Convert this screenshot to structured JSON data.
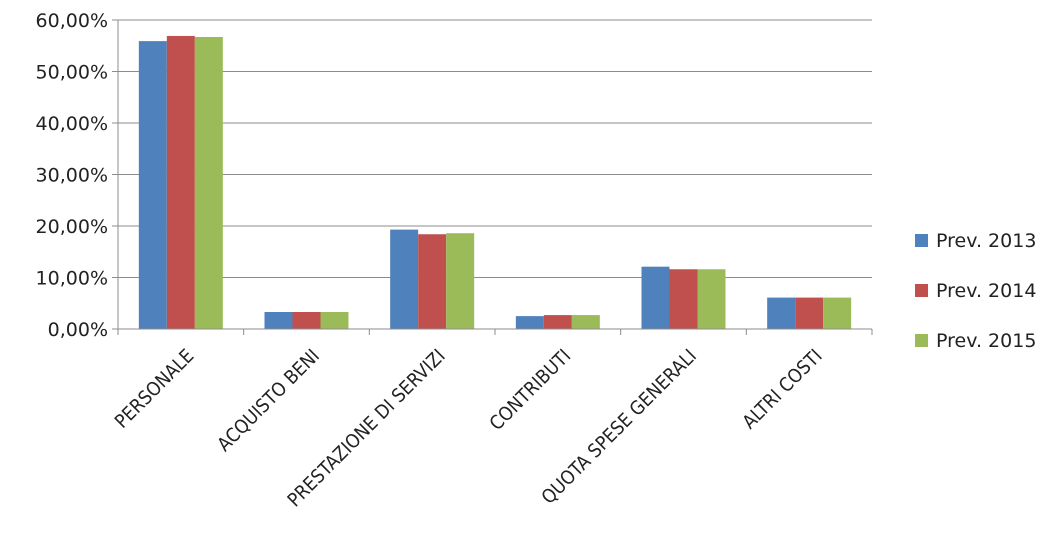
{
  "chart_data": {
    "type": "bar",
    "categories": [
      "PERSONALE",
      "ACQUISTO BENI",
      "PRESTAZIONE DI SERVIZI",
      "CONTRIBUTI",
      "QUOTA SPESE GENERALI",
      "ALTRI COSTI"
    ],
    "series": [
      {
        "name": "Prev. 2013",
        "color": "#4F81BD",
        "values": [
          55.9,
          3.3,
          19.3,
          2.5,
          12.1,
          6.1
        ]
      },
      {
        "name": "Prev. 2014",
        "color": "#C0504D",
        "values": [
          56.9,
          3.3,
          18.4,
          2.7,
          11.6,
          6.1
        ]
      },
      {
        "name": "Prev. 2015",
        "color": "#9BBB59",
        "values": [
          56.7,
          3.3,
          18.6,
          2.7,
          11.6,
          6.1
        ]
      }
    ],
    "y_ticks": [
      "0,00%",
      "10,00%",
      "20,00%",
      "30,00%",
      "40,00%",
      "50,00%",
      "60,00%"
    ],
    "ylim": [
      0,
      60
    ],
    "grid": true,
    "legend_position": "right"
  }
}
